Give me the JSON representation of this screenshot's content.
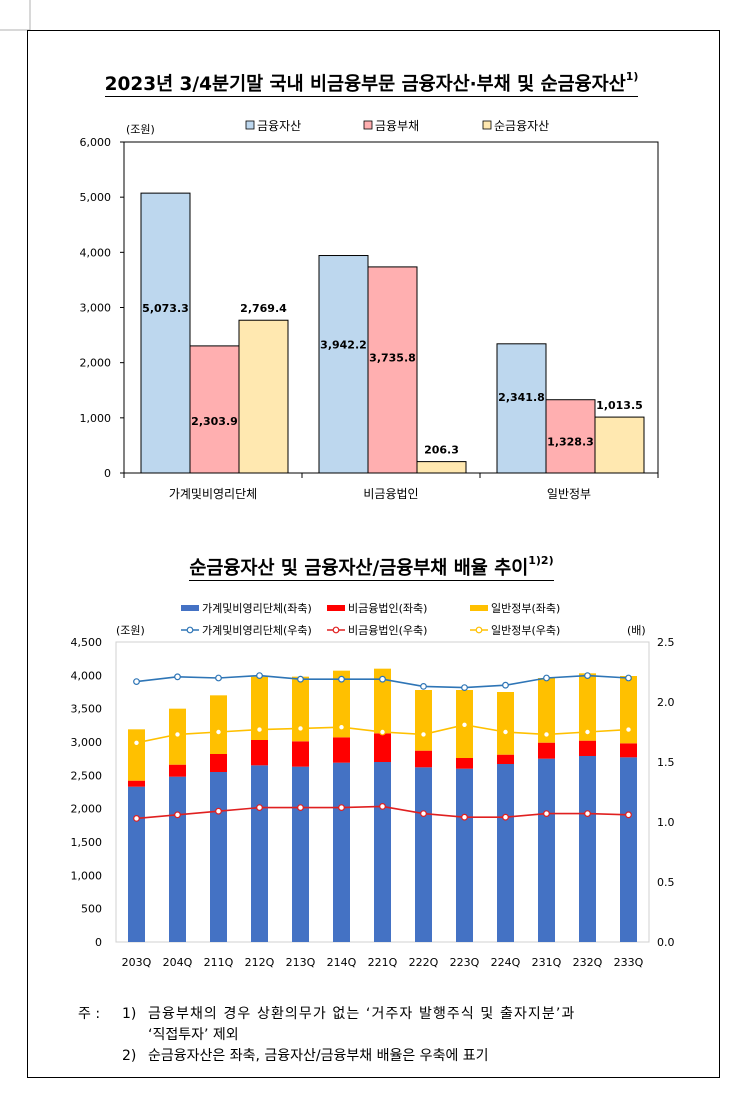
{
  "charts": {
    "chart1": {
      "title": "2023년 3/4분기말 국내 비금융부문 금융자산·부채 및 순금융자산",
      "title_sup": "1)"
    },
    "chart2": {
      "title": "순금융자산 및 금융자산/금융부채 배율 추이",
      "title_sup": "1)2)"
    }
  },
  "notes": {
    "prefix": "주 :",
    "n1_num": "1)",
    "n1_text": "금융부채의 경우 상환의무가 없는 ‘거주자 발행주식 및 출자지분’과",
    "n1_cont": "‘직접투자’ 제외",
    "n2_num": "2)",
    "n2_text": "순금융자산은 좌축, 금융자산/금융부채 배율은 우축에 표기"
  },
  "chart_data": [
    {
      "type": "bar",
      "unit_label": "(조원)",
      "categories": [
        "가계및비영리단체",
        "비금융법인",
        "일반정부"
      ],
      "series": [
        {
          "name": "금융자산",
          "color": "#bdd7ee",
          "values": [
            5073.3,
            3942.2,
            2341.8
          ],
          "labels": [
            "5,073.3",
            "3,942.2",
            "2,341.8"
          ]
        },
        {
          "name": "금융부채",
          "color": "#ffafb0",
          "values": [
            2303.9,
            3735.8,
            1328.3
          ],
          "labels": [
            "2,303.9",
            "3,735.8",
            "1,328.3"
          ]
        },
        {
          "name": "순금융자산",
          "color": "#ffe8b0",
          "values": [
            2769.4,
            206.3,
            1013.5
          ],
          "labels": [
            "2,769.4",
            "206.3",
            "1,013.5"
          ]
        }
      ],
      "ylim": [
        0,
        6000
      ],
      "yticks": [
        0,
        1000,
        2000,
        3000,
        4000,
        5000,
        6000
      ],
      "ytick_labels": [
        "0",
        "1,000",
        "2,000",
        "3,000",
        "4,000",
        "5,000",
        "6,000"
      ],
      "legend": "top"
    },
    {
      "type": "bar",
      "unit_left": "(조원)",
      "unit_right": "(배)",
      "categories": [
        "203Q",
        "204Q",
        "211Q",
        "212Q",
        "213Q",
        "214Q",
        "221Q",
        "222Q",
        "223Q",
        "224Q",
        "231Q",
        "232Q",
        "233Q"
      ],
      "stacked_series": [
        {
          "name": "가계및비영리단체(좌축)",
          "color": "#4472c4",
          "values": [
            2330,
            2480,
            2550,
            2650,
            2630,
            2690,
            2700,
            2620,
            2600,
            2670,
            2750,
            2790,
            2770
          ]
        },
        {
          "name": "비금융법인(좌축)",
          "color": "#ff0000",
          "values": [
            90,
            180,
            270,
            380,
            380,
            380,
            430,
            250,
            160,
            140,
            240,
            230,
            210
          ]
        },
        {
          "name": "일반정부(좌축)",
          "color": "#ffc000",
          "values": [
            770,
            840,
            880,
            950,
            970,
            1000,
            970,
            910,
            1020,
            940,
            970,
            1010,
            1010
          ]
        }
      ],
      "line_series": [
        {
          "name": "가계및비영리단체(우축)",
          "color": "#2e75b6",
          "values": [
            2.17,
            2.21,
            2.2,
            2.22,
            2.19,
            2.19,
            2.19,
            2.13,
            2.12,
            2.14,
            2.2,
            2.22,
            2.2
          ]
        },
        {
          "name": "비금융법인(우축)",
          "color": "#e02020",
          "values": [
            1.03,
            1.06,
            1.09,
            1.12,
            1.12,
            1.12,
            1.13,
            1.07,
            1.04,
            1.04,
            1.07,
            1.07,
            1.06
          ]
        },
        {
          "name": "일반정부(우축)",
          "color": "#ffc000",
          "values": [
            1.66,
            1.73,
            1.75,
            1.77,
            1.78,
            1.79,
            1.75,
            1.73,
            1.81,
            1.75,
            1.73,
            1.75,
            1.77
          ]
        }
      ],
      "ylim_left": [
        0,
        4500
      ],
      "yticks_left": [
        "0",
        "500",
        "1,000",
        "1,500",
        "2,000",
        "2,500",
        "3,000",
        "3,500",
        "4,000",
        "4,500"
      ],
      "ylim_right": [
        0,
        2.5
      ],
      "yticks_right": [
        "0.0",
        "0.5",
        "1.0",
        "1.5",
        "2.0",
        "2.5"
      ],
      "legend": "top"
    }
  ]
}
